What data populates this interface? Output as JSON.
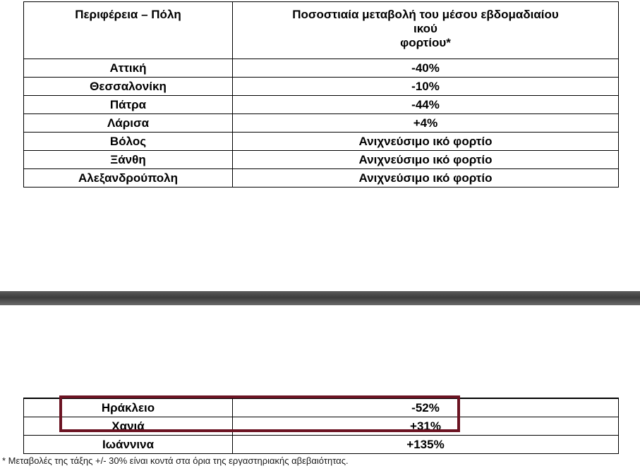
{
  "top_table": {
    "header": {
      "city": "Περιφέρεια – Πόλη",
      "change_line1": "Ποσοστιαία μεταβολή του μέσου εβδομαδιαίου",
      "change_line2": "ικού",
      "change_line3": "φορτίου*"
    },
    "rows": [
      {
        "city": "Αττική",
        "value": "-40%"
      },
      {
        "city": "Θεσσαλονίκη",
        "value": "-10%"
      },
      {
        "city": "Πάτρα",
        "value": "-44%"
      },
      {
        "city": "Λάρισα",
        "value": "+4%"
      },
      {
        "city": "Βόλος",
        "value": "Ανιχνεύσιμο ικό φορτίο"
      },
      {
        "city": "Ξάνθη",
        "value": "Ανιχνεύσιμο ικό φορτίο"
      },
      {
        "city": "Αλεξανδρούπολη",
        "value": "Ανιχνεύσιμο ικό φορτίο"
      }
    ]
  },
  "bottom_table": {
    "rows": [
      {
        "city": "",
        "value": ""
      },
      {
        "city": "Ηράκλειο",
        "value": "-52%"
      },
      {
        "city": "Χανιά",
        "value": "+31%"
      },
      {
        "city": "Ιωάννινα",
        "value": "+135%"
      }
    ]
  },
  "footnote": "* Μεταβολές της τάξης +/- 30% είναι κοντά στα όρια της εργαστηριακής αβεβαιότητας.",
  "colors": {
    "highlight_border": "#6b1322",
    "separator": "#4a4a4a"
  }
}
